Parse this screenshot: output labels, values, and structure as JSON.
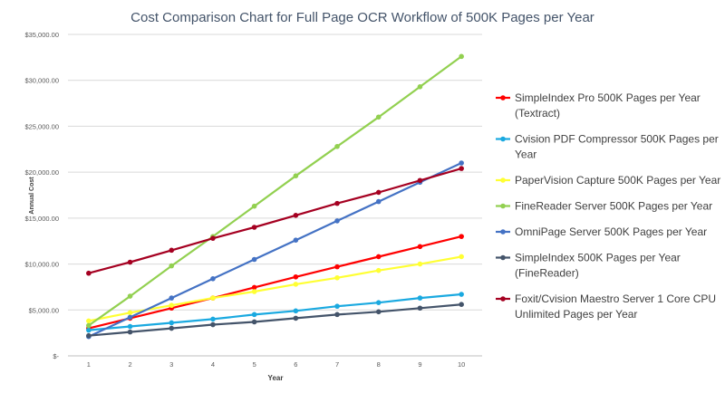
{
  "chart_data": {
    "type": "line",
    "title": "Cost Comparison  Chart for Full Page OCR Workflow of 500K Pages per Year",
    "xlabel": "Year",
    "ylabel": "Annual Cost",
    "x": [
      1,
      2,
      3,
      4,
      5,
      6,
      7,
      8,
      9,
      10
    ],
    "x_tick_labels": [
      "1",
      "2",
      "3",
      "4",
      "5",
      "6",
      "7",
      "8",
      "9",
      "10"
    ],
    "ylim": [
      0,
      35000
    ],
    "y_ticks": [
      0,
      5000,
      10000,
      15000,
      20000,
      25000,
      30000,
      35000
    ],
    "y_tick_labels": [
      "$-",
      "$5,000.00",
      "$10,000.00",
      "$15,000.00",
      "$20,000.00",
      "$25,000.00",
      "$30,000.00",
      "$35,000.00"
    ],
    "grid": "horizontal",
    "legend_position": "right",
    "series": [
      {
        "name_lines": [
          "SimpleIndex Pro 500K Pages per Year",
          "(Textract)"
        ],
        "color": "#ff0000",
        "values": [
          3000,
          4100,
          5200,
          6300,
          7450,
          8600,
          9700,
          10800,
          11900,
          13000
        ]
      },
      {
        "name_lines": [
          "Cvision PDF Compressor  500K Pages per",
          "Year"
        ],
        "color": "#1aa9e0",
        "values": [
          2800,
          3200,
          3600,
          4000,
          4500,
          4900,
          5400,
          5800,
          6300,
          6700
        ]
      },
      {
        "name_lines": [
          "PaperVision Capture 500K Pages per Year"
        ],
        "color": "#ffff33",
        "values": [
          3800,
          4700,
          5500,
          6300,
          7000,
          7800,
          8500,
          9300,
          10000,
          10800
        ]
      },
      {
        "name_lines": [
          "FineReader Server 500K Pages per Year"
        ],
        "color": "#92d050",
        "values": [
          3300,
          6500,
          9800,
          13000,
          16300,
          19600,
          22800,
          26000,
          29300,
          32600
        ]
      },
      {
        "name_lines": [
          "OmniPage Server 500K Pages per Year"
        ],
        "color": "#4472c4",
        "values": [
          2100,
          4200,
          6300,
          8400,
          10500,
          12600,
          14700,
          16800,
          18900,
          21000
        ]
      },
      {
        "name_lines": [
          "SimpleIndex 500K Pages per Year",
          "(FineReader)"
        ],
        "color": "#44546a",
        "values": [
          2200,
          2600,
          3000,
          3400,
          3700,
          4100,
          4500,
          4800,
          5200,
          5600
        ]
      },
      {
        "name_lines": [
          "Foxit/Cvision Maestro Server 1 Core CPU",
          "Unlimited Pages per Year"
        ],
        "color": "#a50021",
        "values": [
          9000,
          10200,
          11500,
          12800,
          14000,
          15300,
          16600,
          17800,
          19100,
          20400
        ]
      }
    ]
  }
}
